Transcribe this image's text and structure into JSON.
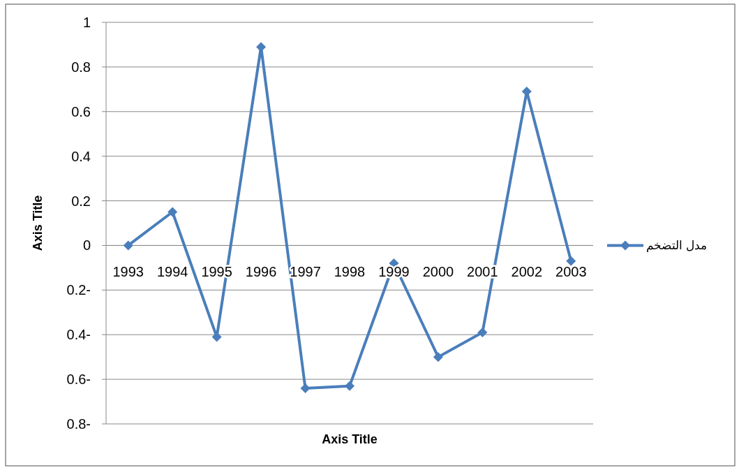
{
  "chart_data": {
    "type": "line",
    "xlabel": "Axis Title",
    "ylabel": "Axis Title",
    "categories": [
      "1993",
      "1994",
      "1995",
      "1996",
      "1997",
      "1998",
      "1999",
      "2000",
      "2001",
      "2002",
      "2003"
    ],
    "series": [
      {
        "name": "مدل التضخم",
        "color": "#4a7ebb",
        "values": [
          0,
          0.15,
          -0.41,
          0.89,
          -0.64,
          -0.63,
          -0.08,
          -0.5,
          -0.39,
          0.69,
          -0.07
        ]
      }
    ],
    "ylim": [
      -0.8,
      1
    ],
    "yticks": [
      {
        "value": -0.8,
        "label": "0.8-"
      },
      {
        "value": -0.6,
        "label": "0.6-"
      },
      {
        "value": -0.4,
        "label": "0.4-"
      },
      {
        "value": -0.2,
        "label": "0.2-"
      },
      0,
      0.2,
      0.4,
      0.6,
      0.8,
      1
    ],
    "grid": "y",
    "legend": "right",
    "marker": "diamond",
    "line_style": "solid"
  }
}
